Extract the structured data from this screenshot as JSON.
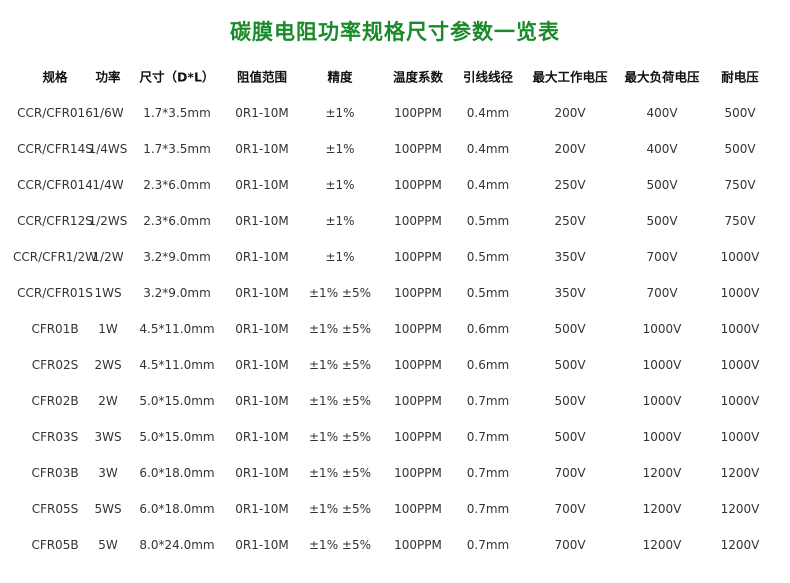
{
  "header": {
    "title": "碳膜电阻功率规格尺寸参数一览表"
  },
  "table": {
    "columns": [
      "规格",
      "功率",
      "尺寸（D*L）",
      "阻值范围",
      "精度",
      "温度系数",
      "引线线径",
      "最大工作电压",
      "最大负荷电压",
      "耐电压"
    ],
    "rows": [
      [
        "CCR/CFR016",
        "1/6W",
        "1.7*3.5mm",
        "0R1-10M",
        "±1%",
        "100PPM",
        "0.4mm",
        "200V",
        "400V",
        "500V"
      ],
      [
        "CCR/CFR14S",
        "1/4WS",
        "1.7*3.5mm",
        "0R1-10M",
        "±1%",
        "100PPM",
        "0.4mm",
        "200V",
        "400V",
        "500V"
      ],
      [
        "CCR/CFR014",
        "1/4W",
        "2.3*6.0mm",
        "0R1-10M",
        "±1%",
        "100PPM",
        "0.4mm",
        "250V",
        "500V",
        "750V"
      ],
      [
        "CCR/CFR12S",
        "1/2WS",
        "2.3*6.0mm",
        "0R1-10M",
        "±1%",
        "100PPM",
        "0.5mm",
        "250V",
        "500V",
        "750V"
      ],
      [
        "CCR/CFR1/2W",
        "1/2W",
        "3.2*9.0mm",
        "0R1-10M",
        "±1%",
        "100PPM",
        "0.5mm",
        "350V",
        "700V",
        "1000V"
      ],
      [
        "CCR/CFR01S",
        "1WS",
        "3.2*9.0mm",
        "0R1-10M",
        "±1% ±5%",
        "100PPM",
        "0.5mm",
        "350V",
        "700V",
        "1000V"
      ],
      [
        "CFR01B",
        "1W",
        "4.5*11.0mm",
        "0R1-10M",
        "±1% ±5%",
        "100PPM",
        "0.6mm",
        "500V",
        "1000V",
        "1000V"
      ],
      [
        "CFR02S",
        "2WS",
        "4.5*11.0mm",
        "0R1-10M",
        "±1% ±5%",
        "100PPM",
        "0.6mm",
        "500V",
        "1000V",
        "1000V"
      ],
      [
        "CFR02B",
        "2W",
        "5.0*15.0mm",
        "0R1-10M",
        "±1% ±5%",
        "100PPM",
        "0.7mm",
        "500V",
        "1000V",
        "1000V"
      ],
      [
        "CFR03S",
        "3WS",
        "5.0*15.0mm",
        "0R1-10M",
        "±1% ±5%",
        "100PPM",
        "0.7mm",
        "500V",
        "1000V",
        "1000V"
      ],
      [
        "CFR03B",
        "3W",
        "6.0*18.0mm",
        "0R1-10M",
        "±1% ±5%",
        "100PPM",
        "0.7mm",
        "700V",
        "1200V",
        "1200V"
      ],
      [
        "CFR05S",
        "5WS",
        "6.0*18.0mm",
        "0R1-10M",
        "±1% ±5%",
        "100PPM",
        "0.7mm",
        "700V",
        "1200V",
        "1200V"
      ],
      [
        "CFR05B",
        "5W",
        "8.0*24.0mm",
        "0R1-10M",
        "±1% ±5%",
        "100PPM",
        "0.7mm",
        "700V",
        "1200V",
        "1200V"
      ]
    ]
  }
}
